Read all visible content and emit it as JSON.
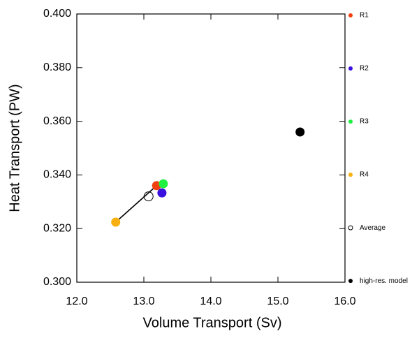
{
  "chart_data": {
    "type": "scatter",
    "xlabel": "Volume Transport (Sv)",
    "ylabel": "Heat Transport (PW)",
    "xlim": [
      12.0,
      16.0
    ],
    "ylim": [
      0.3,
      0.4
    ],
    "xticks": [
      {
        "value": 12,
        "label": "12.0"
      },
      {
        "value": 13,
        "label": "13.0"
      },
      {
        "value": 14,
        "label": "14.0"
      },
      {
        "value": 15,
        "label": "15.0"
      },
      {
        "value": 16,
        "label": "16.0"
      }
    ],
    "yticks": [
      {
        "value": 0.3,
        "label": "0.300"
      },
      {
        "value": 0.32,
        "label": "0.320"
      },
      {
        "value": 0.34,
        "label": "0.340"
      },
      {
        "value": 0.36,
        "label": "0.360"
      },
      {
        "value": 0.38,
        "label": "0.380"
      },
      {
        "value": 0.4,
        "label": "0.400"
      }
    ],
    "series": [
      {
        "name": "R1",
        "color": "#f04010",
        "x": [
          13.19
        ],
        "y": [
          0.336
        ]
      },
      {
        "name": "R2",
        "color": "#3a10e0",
        "x": [
          13.27
        ],
        "y": [
          0.3333
        ]
      },
      {
        "name": "R3",
        "color": "#20f040",
        "x": [
          13.29
        ],
        "y": [
          0.3367
        ]
      },
      {
        "name": "R4",
        "color": "#f8b010",
        "x": [
          12.58
        ],
        "y": [
          0.3224
        ]
      },
      {
        "name": "Average",
        "color": "#000000",
        "fill": "none",
        "x": [
          13.07
        ],
        "y": [
          0.332
        ]
      },
      {
        "name": "high-res. model",
        "color": "#000000",
        "x": [
          15.33
        ],
        "y": [
          0.356
        ]
      }
    ]
  }
}
